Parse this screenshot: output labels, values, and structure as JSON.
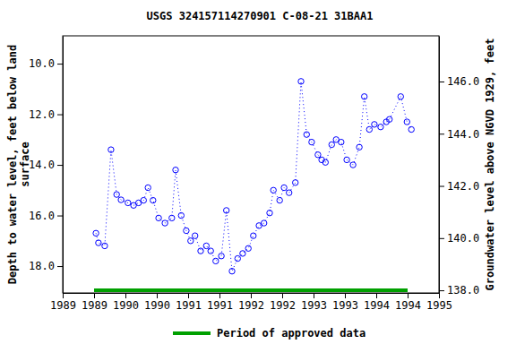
{
  "chart_data": {
    "type": "scatter",
    "title": "USGS 324157114270901 C-08-21 31BAA1",
    "ylabel": [
      "Depth to water level, feet below land",
      "surface"
    ],
    "y2label": "Groundwater level above NGVD 1929, feet",
    "x": [
      1989.53,
      1989.57,
      1989.67,
      1989.77,
      1989.86,
      1989.93,
      1990.04,
      1990.13,
      1990.21,
      1990.29,
      1990.36,
      1990.44,
      1990.53,
      1990.63,
      1990.74,
      1990.8,
      1990.89,
      1990.97,
      1991.04,
      1991.11,
      1991.2,
      1991.29,
      1991.36,
      1991.44,
      1991.53,
      1991.61,
      1991.7,
      1991.79,
      1991.87,
      1991.96,
      1992.04,
      1992.13,
      1992.21,
      1992.3,
      1992.36,
      1992.46,
      1992.53,
      1992.61,
      1992.71,
      1992.8,
      1992.89,
      1992.97,
      1993.07,
      1993.13,
      1993.19,
      1993.29,
      1993.36,
      1993.44,
      1993.53,
      1993.63,
      1993.73,
      1993.81,
      1993.89,
      1993.97,
      1994.07,
      1994.16,
      1994.21,
      1994.39,
      1994.49,
      1994.56
    ],
    "series": [
      {
        "color": "#0000ff",
        "marker": "circle",
        "line_style": "dotted",
        "values": [
          16.7,
          17.08,
          17.2,
          13.4,
          15.17,
          15.38,
          15.5,
          15.6,
          15.5,
          15.4,
          14.9,
          15.4,
          16.1,
          16.3,
          16.1,
          14.2,
          16.0,
          16.6,
          17.0,
          16.8,
          17.4,
          17.2,
          17.4,
          17.8,
          17.6,
          15.8,
          18.2,
          17.7,
          17.5,
          17.3,
          16.8,
          16.4,
          16.3,
          15.9,
          15.0,
          15.4,
          14.9,
          15.1,
          14.7,
          10.7,
          12.8,
          13.1,
          13.6,
          13.8,
          13.9,
          13.2,
          13.0,
          13.1,
          13.8,
          14.0,
          13.3,
          11.3,
          12.6,
          12.4,
          12.5,
          12.3,
          12.2,
          11.3,
          12.3,
          12.6
        ]
      }
    ],
    "xlim": [
      1989,
      1995
    ],
    "xticks": [
      {
        "value": 1989,
        "label": "1989"
      },
      {
        "value": 1989.5,
        "label": "1989"
      },
      {
        "value": 1990,
        "label": "1990"
      },
      {
        "value": 1990.5,
        "label": "1990"
      },
      {
        "value": 1991,
        "label": "1991"
      },
      {
        "value": 1991.5,
        "label": "1991"
      },
      {
        "value": 1992,
        "label": "1992"
      },
      {
        "value": 1992.5,
        "label": "1992"
      },
      {
        "value": 1993,
        "label": "1993"
      },
      {
        "value": 1993.5,
        "label": "1993"
      },
      {
        "value": 1994,
        "label": "1994"
      },
      {
        "value": 1994.5,
        "label": "1994"
      },
      {
        "value": 1995,
        "label": "1995"
      }
    ],
    "ylim": [
      8.9,
      19.06
    ],
    "yticks": [
      {
        "value": 10,
        "label": "10.0"
      },
      {
        "value": 12,
        "label": "12.0"
      },
      {
        "value": 14,
        "label": "14.0"
      },
      {
        "value": 16,
        "label": "16.0"
      },
      {
        "value": 18,
        "label": "18.0"
      }
    ],
    "y2lim": [
      137.9,
      147.75
    ],
    "y2ticks": [
      {
        "value": 138,
        "label": "138.0"
      },
      {
        "value": 140,
        "label": "140.0"
      },
      {
        "value": 142,
        "label": "142.0"
      },
      {
        "value": 144,
        "label": "144.0"
      },
      {
        "value": 146,
        "label": "146.0"
      }
    ],
    "approved_period": {
      "name": "Period of approved data",
      "color": "#00a000",
      "x": [
        1989.5,
        1994.5
      ]
    },
    "legend": "bottom"
  }
}
